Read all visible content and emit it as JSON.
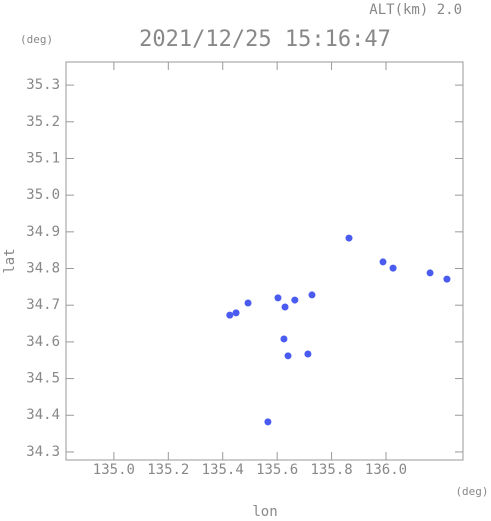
{
  "chart_data": {
    "type": "scatter",
    "title": "2021/12/25 15:16:47",
    "subtitle": "ALT(km) 2.0",
    "y_unit": "(deg)",
    "x_unit": "(deg)",
    "xlabel": "lon",
    "ylabel": "lat",
    "color": "#4a5cf0",
    "x": [
      135.864,
      135.989,
      136.026,
      136.162,
      136.224,
      135.629,
      135.603,
      135.665,
      135.728,
      135.449,
      135.426,
      135.493,
      135.625,
      135.64,
      135.713,
      135.566
    ],
    "values": [
      34.883,
      34.818,
      34.801,
      34.788,
      34.771,
      34.695,
      34.72,
      34.714,
      34.728,
      34.679,
      34.673,
      34.706,
      34.608,
      34.562,
      34.567,
      34.382
    ],
    "xlim": [
      134.824,
      136.283
    ],
    "ylim": [
      34.278,
      35.363
    ],
    "xticks": [
      {
        "value": 135,
        "label": "135.0"
      },
      135.2,
      135.4,
      135.6,
      135.8,
      {
        "value": 136,
        "label": "136.0"
      }
    ],
    "yticks": [
      35.3,
      35.2,
      35.1,
      {
        "value": 35,
        "label": "35.0"
      },
      34.9,
      34.8,
      34.7,
      34.6,
      34.5,
      34.4,
      34.3
    ]
  }
}
